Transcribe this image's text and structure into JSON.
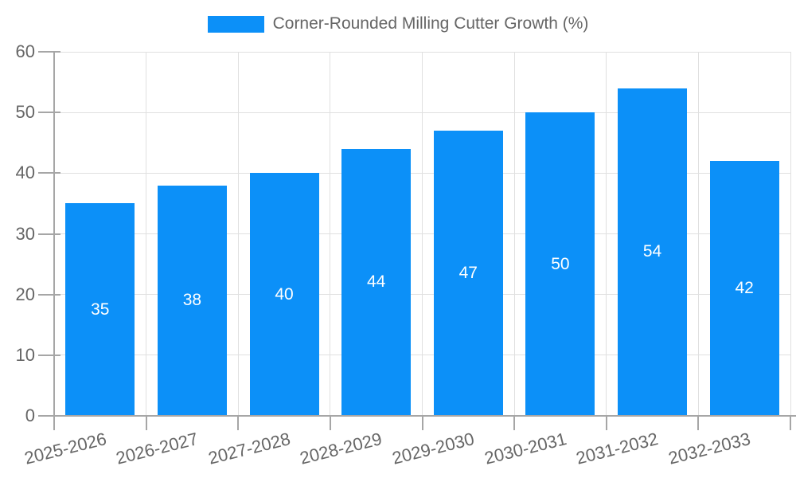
{
  "legend": {
    "label": "Corner-Rounded Milling Cutter Growth (%)"
  },
  "chart_data": {
    "type": "bar",
    "title": "Corner-Rounded Milling Cutter Growth (%)",
    "categories": [
      "2025-2026",
      "2026-2027",
      "2027-2028",
      "2028-2029",
      "2029-2030",
      "2030-2031",
      "2031-2032",
      "2032-2033"
    ],
    "values": [
      35,
      38,
      40,
      44,
      47,
      50,
      54,
      42
    ],
    "xlabel": "",
    "ylabel": "",
    "ylim": [
      0,
      60
    ],
    "yticks": [
      0,
      10,
      20,
      30,
      40,
      50,
      60
    ],
    "grid": true,
    "legend_position": "top-center",
    "value_labels": "centered-in-bar",
    "colors": {
      "bar": "#0c90f8",
      "grid": "#e0e0e0",
      "axis": "#a6a6a6",
      "tick_text": "#666666",
      "legend_text": "#666666",
      "value_text": "#ffffff",
      "background": "#ffffff"
    }
  }
}
